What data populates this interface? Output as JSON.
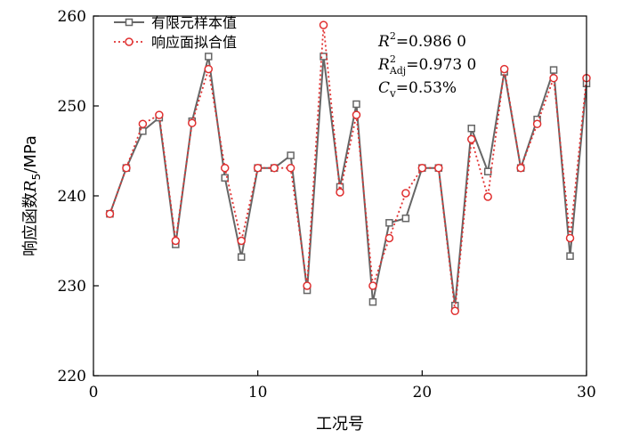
{
  "chart_data": {
    "type": "line",
    "xlabel": "工况号",
    "ylabel": "响应函数R5/MPa",
    "ylabel_parts": {
      "main": "响应函数",
      "var": "R",
      "sub": "5",
      "unit": "/MPa"
    },
    "xlim": [
      0,
      30
    ],
    "ylim": [
      220,
      260
    ],
    "xticks": [
      0,
      10,
      20,
      30
    ],
    "yticks": [
      220,
      230,
      240,
      250,
      260
    ],
    "legend_position": "top-left",
    "x": [
      1,
      2,
      3,
      4,
      5,
      6,
      7,
      8,
      9,
      10,
      11,
      12,
      13,
      14,
      15,
      16,
      17,
      18,
      19,
      20,
      21,
      22,
      23,
      24,
      25,
      26,
      27,
      28,
      29,
      30
    ],
    "series": [
      {
        "name": "有限元样本值",
        "color": "#666666",
        "marker": "square",
        "line": "solid",
        "values": [
          238.0,
          243.1,
          247.2,
          248.7,
          234.6,
          248.3,
          255.5,
          242.0,
          233.2,
          243.1,
          243.1,
          244.5,
          229.5,
          255.5,
          241.0,
          250.2,
          228.2,
          237.0,
          237.5,
          243.1,
          243.1,
          227.8,
          247.5,
          242.7,
          253.8,
          243.1,
          248.5,
          254.0,
          233.3,
          252.5
        ]
      },
      {
        "name": "响应面拟合值",
        "color": "#e03030",
        "marker": "circle",
        "line": "dotted",
        "values": [
          238.0,
          243.1,
          248.0,
          249.0,
          235.0,
          248.1,
          254.1,
          243.1,
          235.0,
          243.1,
          243.1,
          243.1,
          230.0,
          259.0,
          240.4,
          249.0,
          230.0,
          235.3,
          240.3,
          243.1,
          243.1,
          227.2,
          246.3,
          239.9,
          254.1,
          243.1,
          248.0,
          253.1,
          235.3,
          253.1
        ]
      }
    ],
    "annotations": [
      {
        "var": "R",
        "sup": "2",
        "sub": "",
        "value": "=0.986 0"
      },
      {
        "var": "R",
        "sup": "2",
        "sub": "Adj",
        "value": "=0.973 0"
      },
      {
        "var": "C",
        "sup": "",
        "sub": "v",
        "value": "=0.53%"
      }
    ]
  }
}
